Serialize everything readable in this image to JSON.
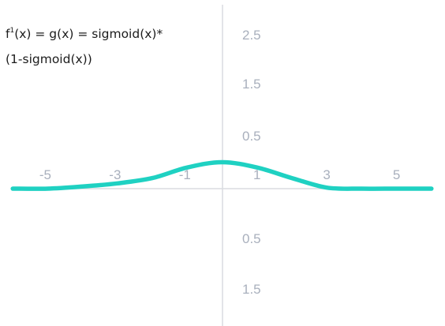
{
  "chart_data": {
    "type": "line",
    "title": {
      "line1_prefix": "f",
      "line1_sup": "1",
      "line1_rest": "(x) = g(x) = sigmoid(x)*",
      "line2": "(1-sigmoid(x))"
    },
    "xlabel": "",
    "ylabel": "",
    "xlim": [
      -6.05,
      6.05
    ],
    "x_ticks": [
      {
        "value": -5,
        "label": "-5"
      },
      {
        "value": -3,
        "label": "-3"
      },
      {
        "value": -1,
        "label": "-1"
      },
      {
        "value": 1,
        "label": "1"
      },
      {
        "value": 3,
        "label": "3"
      },
      {
        "value": 5,
        "label": "5"
      }
    ],
    "y_ticks_upper": [
      "2.5",
      "1.5",
      "0.5"
    ],
    "y_ticks_lower": [
      "0.5",
      "1.5"
    ],
    "series": [
      {
        "color": "#1fd1c2",
        "x": [
          -6,
          -5,
          -4,
          -3,
          -2,
          -1,
          0,
          1,
          2,
          3,
          4,
          5,
          6
        ],
        "y": [
          0,
          0,
          0.02,
          0.05,
          0.1,
          0.2,
          0.25,
          0.2,
          0.1,
          0.01,
          0,
          0,
          0
        ]
      }
    ],
    "grid": false,
    "legend": "none"
  }
}
